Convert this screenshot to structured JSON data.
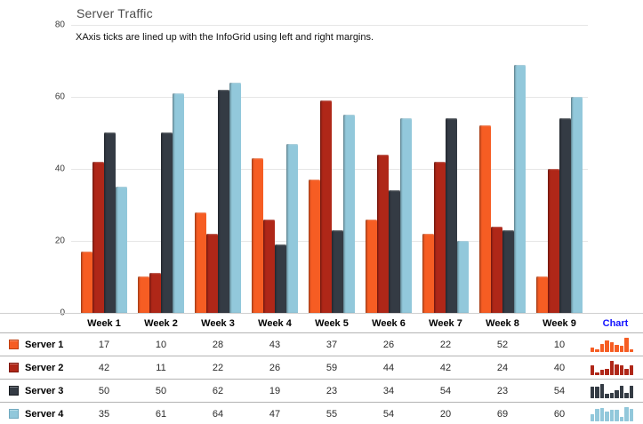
{
  "header": {
    "title": "Server Traffic",
    "subtitle": "XAxis ticks are lined up with the InfoGrid using left and right margins."
  },
  "chart_data": {
    "type": "bar",
    "title": "Server Traffic",
    "annotation": "XAxis ticks are lined up with the InfoGrid using left and right margins.",
    "categories": [
      "Week 1",
      "Week 2",
      "Week 3",
      "Week 4",
      "Week 5",
      "Week 6",
      "Week 7",
      "Week 8",
      "Week 9"
    ],
    "series": [
      {
        "name": "Server 1",
        "color": "#f65d23",
        "edge_color": "#c03e0e",
        "values": [
          17,
          10,
          28,
          43,
          37,
          26,
          22,
          52,
          10
        ]
      },
      {
        "name": "Server 2",
        "color": "#af2718",
        "edge_color": "#7c150a",
        "values": [
          42,
          11,
          22,
          26,
          59,
          44,
          42,
          24,
          40
        ]
      },
      {
        "name": "Server 3",
        "color": "#343b44",
        "edge_color": "#15191e",
        "values": [
          50,
          50,
          62,
          19,
          23,
          34,
          54,
          23,
          54
        ]
      },
      {
        "name": "Server 4",
        "color": "#92c8db",
        "edge_color": "#6fa9bf",
        "values": [
          35,
          61,
          64,
          47,
          55,
          54,
          20,
          69,
          60
        ]
      }
    ],
    "xlabel": "",
    "ylabel": "",
    "ylim": [
      0,
      80
    ],
    "yticks": [
      0,
      20,
      40,
      60,
      80
    ],
    "grid": true,
    "legend_position": "info-grid-left-column"
  },
  "grid": {
    "chart_column_label": "Chart"
  },
  "colors": {
    "grid_line": "#e6e6e6",
    "zero_line": "#cfcfcf",
    "row_separator": "#b3b3b3",
    "chart_header_text": "#1414ff"
  }
}
